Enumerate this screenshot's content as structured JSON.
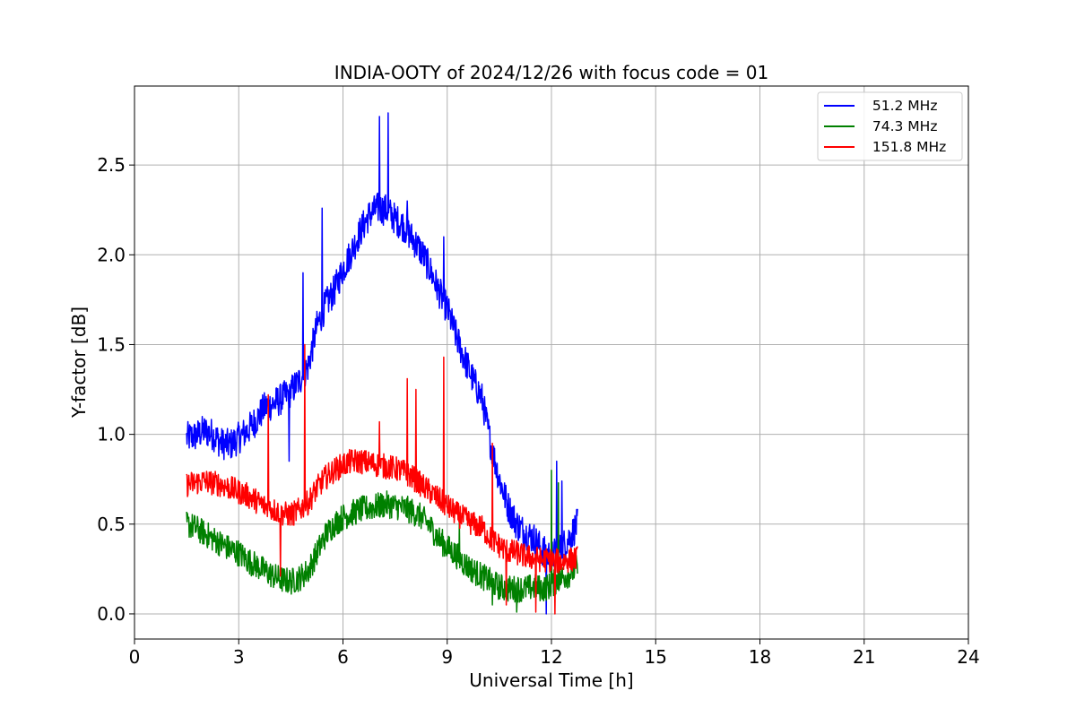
{
  "chart_data": {
    "type": "line",
    "title": "INDIA-OOTY of 2024/12/26 with focus code = 01",
    "xlabel": "Universal Time [h]",
    "ylabel": "Y-factor [dB]",
    "xlim": [
      0,
      24
    ],
    "ylim": [
      -0.14,
      2.94
    ],
    "xticks": [
      0,
      3,
      6,
      9,
      12,
      15,
      18,
      21,
      24
    ],
    "xtick_labels": [
      "0",
      "3",
      "6",
      "9",
      "12",
      "15",
      "18",
      "21",
      "24"
    ],
    "yticks": [
      0.0,
      0.5,
      1.0,
      1.5,
      2.0,
      2.5
    ],
    "ytick_labels": [
      "0.0",
      "0.5",
      "1.0",
      "1.5",
      "2.0",
      "2.5"
    ],
    "grid": true,
    "legend_position": "top-right",
    "series": [
      {
        "name": "  51.2 MHz",
        "color": "#0000ff",
        "x": [
          1.5,
          1.75,
          2.0,
          2.25,
          2.5,
          2.75,
          3.0,
          3.25,
          3.5,
          3.75,
          4.0,
          4.25,
          4.5,
          4.75,
          5.0,
          5.25,
          5.5,
          5.75,
          6.0,
          6.25,
          6.5,
          6.75,
          7.0,
          7.25,
          7.5,
          7.75,
          8.0,
          8.25,
          8.5,
          8.75,
          9.0,
          9.25,
          9.5,
          9.75,
          10.0,
          10.25,
          10.5,
          10.75,
          11.0,
          11.25,
          11.5,
          11.75,
          12.0,
          12.25,
          12.5,
          12.75
        ],
        "y": [
          0.98,
          0.99,
          1.02,
          1.0,
          0.95,
          0.94,
          0.98,
          1.02,
          1.08,
          1.15,
          1.17,
          1.2,
          1.24,
          1.3,
          1.38,
          1.6,
          1.72,
          1.8,
          1.92,
          2.02,
          2.13,
          2.22,
          2.26,
          2.25,
          2.2,
          2.16,
          2.09,
          2.02,
          1.92,
          1.8,
          1.7,
          1.55,
          1.42,
          1.3,
          1.2,
          0.95,
          0.75,
          0.6,
          0.5,
          0.45,
          0.42,
          0.35,
          0.32,
          0.36,
          0.42,
          0.5
        ],
        "spikes": [
          [
            4.85,
            1.9
          ],
          [
            5.4,
            2.26
          ],
          [
            7.05,
            2.77
          ],
          [
            7.3,
            2.79
          ],
          [
            7.85,
            2.3
          ],
          [
            8.9,
            2.1
          ],
          [
            4.45,
            0.85
          ],
          [
            12.15,
            0.85
          ],
          [
            11.85,
            0.0
          ],
          [
            12.3,
            0.74
          ]
        ]
      },
      {
        "name": "  74.3 MHz",
        "color": "#008000",
        "x": [
          1.5,
          1.75,
          2.0,
          2.25,
          2.5,
          2.75,
          3.0,
          3.25,
          3.5,
          3.75,
          4.0,
          4.25,
          4.5,
          4.75,
          5.0,
          5.25,
          5.5,
          5.75,
          6.0,
          6.25,
          6.5,
          6.75,
          7.0,
          7.25,
          7.5,
          7.75,
          8.0,
          8.25,
          8.5,
          8.75,
          9.0,
          9.25,
          9.5,
          9.75,
          10.0,
          10.25,
          10.5,
          10.75,
          11.0,
          11.25,
          11.5,
          11.75,
          12.0,
          12.25,
          12.5,
          12.75
        ],
        "y": [
          0.5,
          0.48,
          0.45,
          0.42,
          0.39,
          0.36,
          0.34,
          0.3,
          0.27,
          0.24,
          0.21,
          0.19,
          0.18,
          0.2,
          0.24,
          0.34,
          0.44,
          0.5,
          0.54,
          0.56,
          0.58,
          0.59,
          0.6,
          0.61,
          0.6,
          0.59,
          0.57,
          0.54,
          0.49,
          0.42,
          0.37,
          0.33,
          0.28,
          0.24,
          0.21,
          0.18,
          0.15,
          0.14,
          0.14,
          0.14,
          0.15,
          0.14,
          0.16,
          0.2,
          0.22,
          0.26
        ],
        "spikes": [
          [
            12.0,
            0.8
          ],
          [
            12.2,
            0.73
          ],
          [
            10.3,
            0.05
          ],
          [
            11.0,
            0.01
          ],
          [
            9.35,
            0.52
          ]
        ]
      },
      {
        "name": "  151.8 MHz",
        "color": "#ff0000",
        "x": [
          1.5,
          1.75,
          2.0,
          2.25,
          2.5,
          2.75,
          3.0,
          3.25,
          3.5,
          3.75,
          4.0,
          4.25,
          4.5,
          4.75,
          5.0,
          5.25,
          5.5,
          5.75,
          6.0,
          6.25,
          6.5,
          6.75,
          7.0,
          7.25,
          7.5,
          7.75,
          8.0,
          8.25,
          8.5,
          8.75,
          9.0,
          9.25,
          9.5,
          9.75,
          10.0,
          10.25,
          10.5,
          10.75,
          11.0,
          11.25,
          11.5,
          11.75,
          12.0,
          12.25,
          12.5,
          12.75
        ],
        "y": [
          0.72,
          0.73,
          0.74,
          0.73,
          0.72,
          0.7,
          0.68,
          0.66,
          0.63,
          0.6,
          0.58,
          0.56,
          0.55,
          0.58,
          0.62,
          0.7,
          0.76,
          0.8,
          0.83,
          0.85,
          0.85,
          0.84,
          0.83,
          0.82,
          0.81,
          0.79,
          0.76,
          0.72,
          0.68,
          0.64,
          0.6,
          0.56,
          0.53,
          0.5,
          0.48,
          0.42,
          0.38,
          0.35,
          0.34,
          0.32,
          0.31,
          0.3,
          0.3,
          0.29,
          0.3,
          0.31
        ],
        "spikes": [
          [
            3.85,
            1.22
          ],
          [
            4.9,
            1.5
          ],
          [
            7.05,
            1.07
          ],
          [
            7.85,
            1.31
          ],
          [
            8.1,
            1.25
          ],
          [
            8.9,
            1.43
          ],
          [
            10.3,
            0.95
          ],
          [
            4.2,
            0.21
          ],
          [
            10.7,
            0.05
          ],
          [
            11.55,
            0.01
          ],
          [
            12.1,
            0.0
          ]
        ]
      }
    ]
  }
}
